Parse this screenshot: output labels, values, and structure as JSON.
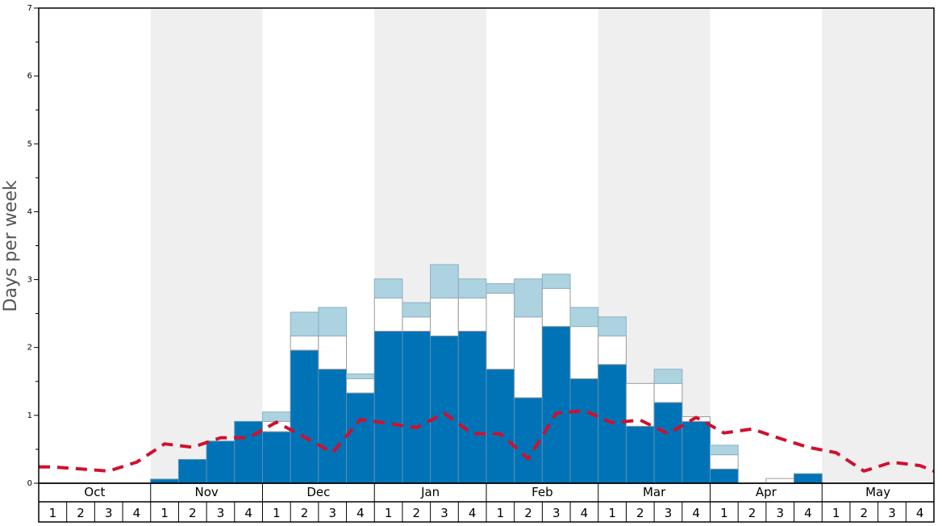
{
  "chart_data": {
    "type": "bar",
    "ylabel": "Days per week",
    "ylim": [
      0,
      7
    ],
    "y_ticks": [
      "0",
      "1",
      "2",
      "3",
      "4",
      "5",
      "6",
      "7"
    ],
    "months": [
      "Oct",
      "Nov",
      "Dec",
      "Jan",
      "Feb",
      "Mar",
      "Apr",
      "May"
    ],
    "weeks": [
      "1",
      "2",
      "3",
      "4"
    ],
    "shaded_months": [
      "Nov",
      "Jan",
      "Mar",
      "May"
    ],
    "colors": {
      "dark": "#0073b6",
      "light": "#ffffff",
      "top": "#add3e0",
      "line": "#d0102e",
      "shade": "#efefef"
    },
    "series": [
      {
        "values": [
          0,
          0,
          0,
          0,
          0.06,
          0.35,
          0.62,
          0.91,
          0.76,
          1.96,
          1.68,
          1.33,
          2.24,
          2.24,
          2.17,
          2.24,
          1.68,
          1.26,
          2.31,
          1.54,
          1.75,
          0.84,
          1.19,
          0.91,
          0.21,
          0,
          0,
          0.14,
          0,
          0,
          0,
          0
        ]
      },
      {
        "values": [
          0,
          0,
          0,
          0,
          0,
          0,
          0,
          0,
          0.15,
          0.21,
          0.49,
          0.21,
          0.49,
          0.21,
          0.56,
          0.49,
          1.12,
          1.19,
          0.56,
          0.77,
          0.42,
          0.63,
          0.28,
          0.07,
          0.21,
          0,
          0.07,
          0,
          0,
          0,
          0,
          0
        ]
      },
      {
        "values": [
          0,
          0,
          0,
          0,
          0,
          0,
          0,
          0,
          0.14,
          0.35,
          0.42,
          0.07,
          0.28,
          0.21,
          0.49,
          0.28,
          0.14,
          0.56,
          0.21,
          0.28,
          0.28,
          0,
          0.21,
          0,
          0.14,
          0,
          0,
          0,
          0,
          0,
          0,
          0
        ]
      },
      {
        "values": [
          0.24,
          0.21,
          0.18,
          0.31,
          0.58,
          0.53,
          0.67,
          0.67,
          0.9,
          0.68,
          0.45,
          0.94,
          0.88,
          0.82,
          1.03,
          0.73,
          0.73,
          0.36,
          1.03,
          1.07,
          0.89,
          0.93,
          0.73,
          0.97,
          0.74,
          0.8,
          0.66,
          0.53,
          0.45,
          0.18,
          0.31,
          0.26
        ]
      }
    ],
    "last_line_value": 0.18
  }
}
